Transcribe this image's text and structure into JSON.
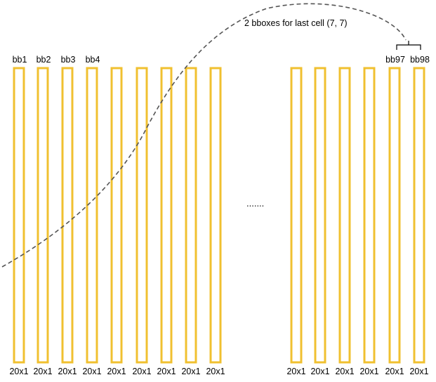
{
  "diagram": {
    "colors": {
      "box_stroke": "#f0c030",
      "curve_stroke": "#555555",
      "text": "#000000"
    },
    "annotation": "2 bboxes for last cell (7, 7)",
    "ellipsis": ".......",
    "left_group": [
      {
        "top_label": "bb1",
        "bottom_label": "20x1"
      },
      {
        "top_label": "bb2",
        "bottom_label": "20x1"
      },
      {
        "top_label": "bb3",
        "bottom_label": "20x1"
      },
      {
        "top_label": "bb4",
        "bottom_label": "20x1"
      },
      {
        "top_label": "",
        "bottom_label": "20x1"
      },
      {
        "top_label": "",
        "bottom_label": "20x1"
      },
      {
        "top_label": "",
        "bottom_label": "20x1"
      },
      {
        "top_label": "",
        "bottom_label": "20x1"
      },
      {
        "top_label": "",
        "bottom_label": "20x1"
      }
    ],
    "right_group": [
      {
        "top_label": "",
        "bottom_label": "20x1"
      },
      {
        "top_label": "",
        "bottom_label": "20x1"
      },
      {
        "top_label": "",
        "bottom_label": "20x1"
      },
      {
        "top_label": "",
        "bottom_label": "20x1"
      },
      {
        "top_label": "bb97",
        "bottom_label": "20x1"
      },
      {
        "top_label": "bb98",
        "bottom_label": "20x1"
      }
    ]
  }
}
